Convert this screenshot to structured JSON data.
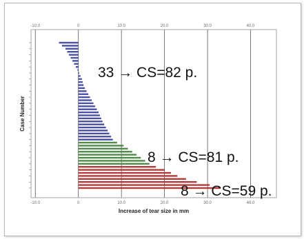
{
  "chart_data": {
    "type": "bar",
    "orientation": "horizontal",
    "title": "",
    "xlabel": "Increase of tear size in mm",
    "ylabel": "Case Number",
    "xlim": [
      -11,
      46
    ],
    "xticks": [
      -10.0,
      0,
      10.0,
      20.0,
      30.0,
      40.0
    ],
    "xtick_labels": [
      "-10.0",
      "0",
      "10.0",
      "20.0",
      "30.0",
      "40.0"
    ],
    "grid": "vertical",
    "groups": [
      {
        "name": "33",
        "color": "#4a4fa6",
        "count": 33
      },
      {
        "name": "8",
        "color": "#4f8a48",
        "count": 8
      },
      {
        "name": "8",
        "color": "#b23a3a",
        "count": 8
      }
    ],
    "values": [
      -4.5,
      -3.8,
      -3.0,
      -2.6,
      -2.2,
      -1.8,
      -1.4,
      -1.0,
      -0.6,
      -0.2,
      0.2,
      0.5,
      0.8,
      1.0,
      1.2,
      1.5,
      1.9,
      2.3,
      2.7,
      3.1,
      3.5,
      3.9,
      4.3,
      4.7,
      5.0,
      5.3,
      5.6,
      6.0,
      6.4,
      6.8,
      7.2,
      7.6,
      8.0,
      9.0,
      10.5,
      11.5,
      12.5,
      13.5,
      14.5,
      15.5,
      16.5,
      18.0,
      20.0,
      21.5,
      23.0,
      25.0,
      27.5,
      30.5,
      33.0
    ],
    "annotations": [
      "33 → CS=82 p.",
      "8 → CS=81 p.",
      "8 → CS=59 p."
    ]
  }
}
